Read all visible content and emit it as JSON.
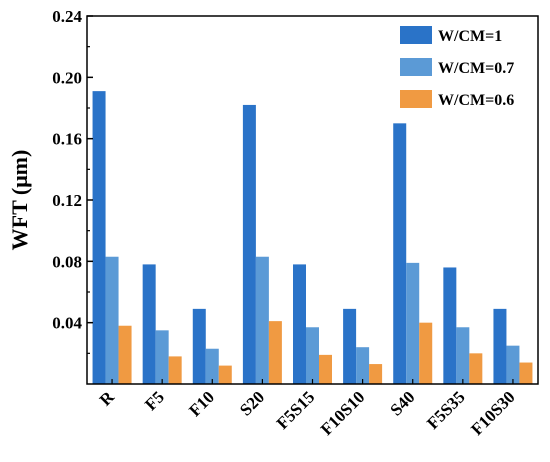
{
  "chart_data": {
    "type": "bar",
    "title": "",
    "xlabel": "",
    "ylabel": "WFT (μm)",
    "ylim": [
      0.0,
      0.24
    ],
    "yticks": [
      "0.04",
      "0.08",
      "0.12",
      "0.16",
      "0.20",
      "0.24"
    ],
    "categories": [
      "R",
      "F5",
      "F10",
      "S20",
      "F5S15",
      "F10S10",
      "S40",
      "F5S35",
      "F10S30"
    ],
    "series": [
      {
        "name": "W/CM=1",
        "color": "#2a73c8",
        "values": [
          0.191,
          0.078,
          0.049,
          0.182,
          0.078,
          0.049,
          0.17,
          0.076,
          0.049
        ]
      },
      {
        "name": "W/CM=0.7",
        "color": "#5b9ad6",
        "values": [
          0.083,
          0.035,
          0.023,
          0.083,
          0.037,
          0.024,
          0.079,
          0.037,
          0.025
        ]
      },
      {
        "name": "W/CM=0.6",
        "color": "#f09a42",
        "values": [
          0.038,
          0.018,
          0.012,
          0.041,
          0.019,
          0.013,
          0.04,
          0.02,
          0.014
        ]
      }
    ],
    "grid": false,
    "legend_position": "top-right"
  }
}
